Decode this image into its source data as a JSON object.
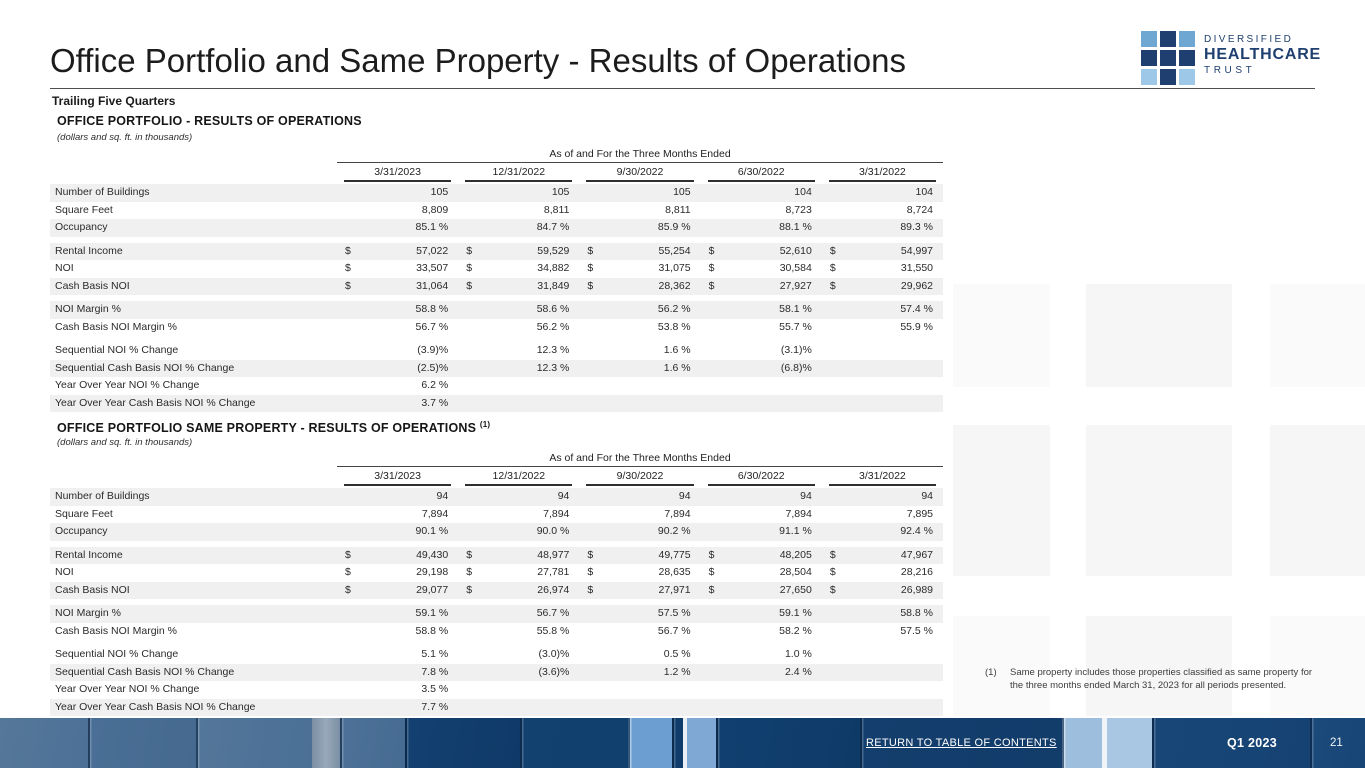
{
  "page": {
    "title": "Office Portfolio and Same Property - Results of Operations",
    "subtitle": "Trailing Five Quarters"
  },
  "logo": {
    "line1": "DIVERSIFIED",
    "line2": "HEALTHCARE",
    "line3": "TRUST",
    "square_colors": [
      "#6fa7d3",
      "#1e3f6f",
      "#6fa7d3",
      "#1e3f6f",
      "#1e3f6f",
      "#1e3f6f",
      "#9dc8e7",
      "#1e3f6f",
      "#9dc8e7"
    ]
  },
  "period_header": "As of and For the Three Months Ended",
  "columns": [
    "3/31/2023",
    "12/31/2022",
    "9/30/2022",
    "6/30/2022",
    "3/31/2022"
  ],
  "tables": [
    {
      "title": "OFFICE PORTFOLIO -  RESULTS OF OPERATIONS",
      "title_sup": "",
      "note": "(dollars and sq. ft. in thousands)",
      "groups": [
        {
          "dollar": false,
          "rows": [
            {
              "label": "Number of Buildings",
              "shade": true,
              "values": [
                "105",
                "105",
                "105",
                "104",
                "104"
              ]
            },
            {
              "label": "Square Feet",
              "shade": false,
              "values": [
                "8,809",
                "8,811",
                "8,811",
                "8,723",
                "8,724"
              ]
            },
            {
              "label": "Occupancy",
              "shade": true,
              "values": [
                "85.1 %",
                "84.7 %",
                "85.9 %",
                "88.1 %",
                "89.3 %"
              ]
            }
          ]
        },
        {
          "dollar": true,
          "rows": [
            {
              "label": "Rental Income",
              "shade": true,
              "values": [
                "57,022",
                "59,529",
                "55,254",
                "52,610",
                "54,997"
              ]
            },
            {
              "label": "NOI",
              "shade": false,
              "values": [
                "33,507",
                "34,882",
                "31,075",
                "30,584",
                "31,550"
              ]
            },
            {
              "label": "Cash Basis NOI",
              "shade": true,
              "values": [
                "31,064",
                "31,849",
                "28,362",
                "27,927",
                "29,962"
              ]
            }
          ]
        },
        {
          "dollar": false,
          "rows": [
            {
              "label": "NOI Margin %",
              "shade": true,
              "values": [
                "58.8 %",
                "58.6 %",
                "56.2 %",
                "58.1 %",
                "57.4 %"
              ]
            },
            {
              "label": "Cash Basis NOI Margin %",
              "shade": false,
              "values": [
                "56.7 %",
                "56.2 %",
                "53.8 %",
                "55.7 %",
                "55.9 %"
              ]
            }
          ]
        },
        {
          "dollar": false,
          "rows": [
            {
              "label": "Sequential NOI % Change",
              "shade": false,
              "values": [
                "(3.9)%",
                "12.3 %",
                "1.6 %",
                "(3.1)%",
                ""
              ]
            },
            {
              "label": "Sequential Cash Basis NOI % Change",
              "shade": true,
              "values": [
                "(2.5)%",
                "12.3 %",
                "1.6 %",
                "(6.8)%",
                ""
              ]
            },
            {
              "label": "Year Over Year NOI % Change",
              "shade": false,
              "values": [
                "6.2 %",
                "",
                "",
                "",
                ""
              ]
            },
            {
              "label": "Year Over Year Cash Basis NOI % Change",
              "shade": true,
              "values": [
                "3.7 %",
                "",
                "",
                "",
                ""
              ]
            }
          ]
        }
      ]
    },
    {
      "title": "OFFICE PORTFOLIO SAME PROPERTY - RESULTS OF OPERATIONS",
      "title_sup": "(1)",
      "note": "(dollars and sq. ft. in thousands)",
      "groups": [
        {
          "dollar": false,
          "rows": [
            {
              "label": "Number of Buildings",
              "shade": true,
              "values": [
                "94",
                "94",
                "94",
                "94",
                "94"
              ]
            },
            {
              "label": "Square Feet",
              "shade": false,
              "values": [
                "7,894",
                "7,894",
                "7,894",
                "7,894",
                "7,895"
              ]
            },
            {
              "label": "Occupancy",
              "shade": true,
              "values": [
                "90.1 %",
                "90.0 %",
                "90.2 %",
                "91.1 %",
                "92.4 %"
              ]
            }
          ]
        },
        {
          "dollar": true,
          "rows": [
            {
              "label": "Rental Income",
              "shade": true,
              "values": [
                "49,430",
                "48,977",
                "49,775",
                "48,205",
                "47,967"
              ]
            },
            {
              "label": "NOI",
              "shade": false,
              "values": [
                "29,198",
                "27,781",
                "28,635",
                "28,504",
                "28,216"
              ]
            },
            {
              "label": "Cash Basis NOI",
              "shade": true,
              "values": [
                "29,077",
                "26,974",
                "27,971",
                "27,650",
                "26,989"
              ]
            }
          ]
        },
        {
          "dollar": false,
          "rows": [
            {
              "label": "NOI Margin %",
              "shade": true,
              "values": [
                "59.1 %",
                "56.7 %",
                "57.5 %",
                "59.1 %",
                "58.8 %"
              ]
            },
            {
              "label": "Cash Basis NOI Margin %",
              "shade": false,
              "values": [
                "58.8 %",
                "55.8 %",
                "56.7 %",
                "58.2 %",
                "57.5 %"
              ]
            }
          ]
        },
        {
          "dollar": false,
          "rows": [
            {
              "label": "Sequential NOI % Change",
              "shade": false,
              "values": [
                "5.1 %",
                "(3.0)%",
                "0.5 %",
                "1.0 %",
                ""
              ]
            },
            {
              "label": "Sequential Cash Basis NOI % Change",
              "shade": true,
              "values": [
                "7.8 %",
                "(3.6)%",
                "1.2 %",
                "2.4 %",
                ""
              ]
            },
            {
              "label": "Year Over Year NOI % Change",
              "shade": false,
              "values": [
                "3.5 %",
                "",
                "",
                "",
                ""
              ]
            },
            {
              "label": "Year Over Year Cash Basis NOI % Change",
              "shade": true,
              "values": [
                "7.7 %",
                "",
                "",
                "",
                ""
              ]
            }
          ]
        }
      ]
    }
  ],
  "footnote": {
    "marker": "(1)",
    "text": "Same property includes those properties classified as same property for the three months ended March 31, 2023 for all periods presented."
  },
  "footer": {
    "link": "RETURN TO TABLE OF CONTENTS",
    "quarter": "Q1 2023",
    "page": "21"
  },
  "colors": {
    "navy": "#1e3f6f",
    "light_blue": "#6fa7d3",
    "lighter_blue": "#9dc8e7",
    "row_stripe": "#f0f0f0",
    "footer_navy": "#11406f",
    "footer_steel": "#4f7399",
    "footer_light_panel": "#9dbedd"
  }
}
